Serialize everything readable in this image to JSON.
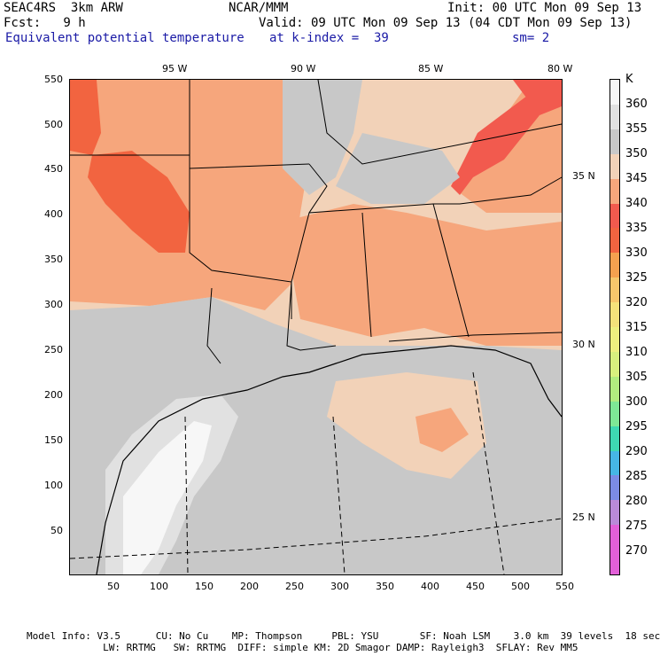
{
  "header": {
    "line1_left": "SEAC4RS  3km ARW",
    "line1_center": "NCAR/MMM",
    "line1_right": "Init: 00 UTC Mon 09 Sep 13",
    "line2_left": "Fcst:   9 h",
    "line2_right": "Valid: 09 UTC Mon 09 Sep 13 (04 CDT Mon 09 Sep 13)",
    "line3_field": "Equivalent potential temperature",
    "line3_level": "at k-index =  39",
    "line3_smooth": "sm= 2"
  },
  "map": {
    "lon_labels": [
      "95 W",
      "90 W",
      "85 W",
      "80 W"
    ],
    "lat_labels": [
      "35 N",
      "30 N",
      "25 N"
    ],
    "y_ticks": [
      "550",
      "500",
      "450",
      "400",
      "350",
      "300",
      "250",
      "200",
      "150",
      "100",
      "50"
    ],
    "x_ticks": [
      "50",
      "100",
      "150",
      "200",
      "250",
      "300",
      "350",
      "400",
      "450",
      "500",
      "550"
    ]
  },
  "colorbar": {
    "unit": "K",
    "levels": [
      "360",
      "355",
      "350",
      "345",
      "340",
      "335",
      "330",
      "325",
      "320",
      "315",
      "310",
      "305",
      "300",
      "295",
      "290",
      "285",
      "280",
      "275",
      "270"
    ],
    "colors": [
      "#f7f7f7",
      "#e1e1e1",
      "#c8c8c8",
      "#f2d2b8",
      "#f6a67c",
      "#f25a4e",
      "#f26440",
      "#f5a14f",
      "#f6c76b",
      "#f4e27a",
      "#eef07f",
      "#d8f07e",
      "#b1ec7f",
      "#7ee896",
      "#3ed8b2",
      "#46b6e6",
      "#7b8be6",
      "#b98ad8",
      "#e25fd8"
    ]
  },
  "footer": {
    "line1": "Model Info: V3.5      CU: No Cu    MP: Thompson     PBL: YSU       SF: Noah LSM    3.0 km  39 levels  18 sec",
    "line2": "             LW: RRTMG   SW: RRTMG  DIFF: simple KM: 2D Smagor DAMP: Rayleigh3  SFLAY: Rev MM5"
  }
}
